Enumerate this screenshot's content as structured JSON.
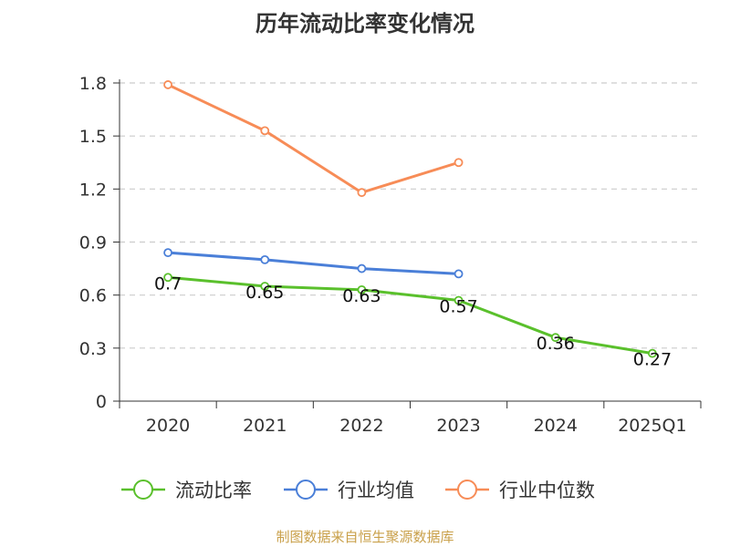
{
  "chart_data": {
    "type": "line",
    "title": "历年流动比率变化情况",
    "categories": [
      "2020",
      "2021",
      "2022",
      "2023",
      "2024",
      "2025Q1"
    ],
    "ylim": [
      0,
      1.8
    ],
    "yticks": [
      "0",
      "0.3",
      "0.6",
      "0.9",
      "1.2",
      "1.5",
      "1.8"
    ],
    "grid": true,
    "legend_position": "bottom",
    "series": [
      {
        "name": "流动比率",
        "color": "#5ac02c",
        "values": [
          0.7,
          0.65,
          0.63,
          0.57,
          0.36,
          0.27
        ],
        "labels": [
          "0.7",
          "0.65",
          "0.63",
          "0.57",
          "0.36",
          "0.27"
        ]
      },
      {
        "name": "行业均值",
        "color": "#4a7fd8",
        "values": [
          0.84,
          0.8,
          0.75,
          0.72,
          null,
          null
        ]
      },
      {
        "name": "行业中位数",
        "color": "#f78c57",
        "values": [
          1.79,
          1.53,
          1.18,
          1.35,
          null,
          null
        ]
      }
    ]
  },
  "source": "制图数据来自恒生聚源数据库"
}
